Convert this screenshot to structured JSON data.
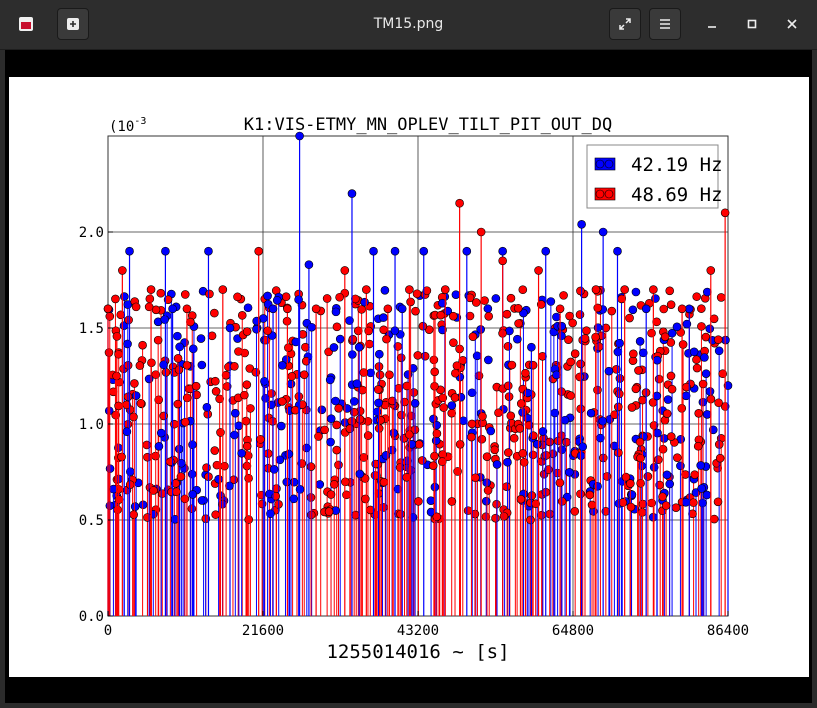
{
  "window": {
    "title": "TM15.png",
    "icons": {
      "app": "image-viewer-icon",
      "new": "new-window-icon",
      "fullscreen": "fullscreen-icon",
      "menu": "hamburger-menu-icon",
      "minimize": "minimize-icon",
      "maximize": "maximize-icon",
      "close": "close-icon"
    }
  },
  "chart_data": {
    "type": "scatter",
    "title": "K1:VIS-ETMY_MN_OPLEV_TILT_PIT_OUT_DQ",
    "xlabel": "1255014016 ~ [s]",
    "ylabel": "",
    "y_scale_label": "(10",
    "y_scale_exp": "-3",
    "xlim": [
      0,
      86400
    ],
    "ylim": [
      0,
      0.0025
    ],
    "x_ticks": [
      0,
      21600,
      43200,
      64800,
      86400
    ],
    "x_tick_labels": [
      "0",
      "21600",
      "43200",
      "64800",
      "86400"
    ],
    "y_ticks": [
      0,
      0.0005,
      0.001,
      0.0015,
      0.002
    ],
    "y_tick_labels": [
      "0.0",
      "0.5",
      "1.0",
      "1.5",
      "2.0"
    ],
    "grid": true,
    "legend_position": "top-right",
    "marker": "stem",
    "series": [
      {
        "name": "42.19 Hz",
        "color": "#0000ff",
        "x": [
          0,
          3000,
          8000,
          9000,
          14000,
          17000,
          23000,
          26700,
          28000,
          34000,
          35000,
          37000,
          40000,
          41000,
          44000,
          50000,
          55000,
          59000,
          61000,
          66000,
          69000,
          71000,
          75000,
          81000,
          86400
        ],
        "values": [
          0.0016,
          0.0019,
          0.0019,
          0.0016,
          0.0019,
          0.0015,
          0.0016,
          0.0025,
          0.00183,
          0.0022,
          0.0014,
          0.0019,
          0.0019,
          0.0016,
          0.0019,
          0.0019,
          0.0019,
          0.0014,
          0.0019,
          0.00204,
          0.002,
          0.0019,
          0.0016,
          0.0016,
          0.0012
        ]
      },
      {
        "name": "48.69 Hz",
        "color": "#ff0000",
        "x": [
          0,
          2000,
          6000,
          11000,
          16000,
          21000,
          25000,
          29000,
          33000,
          36000,
          39000,
          42000,
          47000,
          49000,
          52000,
          55000,
          60000,
          63000,
          68000,
          72000,
          76000,
          80000,
          84000,
          86000
        ],
        "values": [
          0.0016,
          0.0018,
          0.0017,
          0.0016,
          0.0017,
          0.0019,
          0.0016,
          0.0016,
          0.0018,
          0.0017,
          0.0016,
          0.0017,
          0.0017,
          0.00215,
          0.002,
          0.00185,
          0.0018,
          0.0016,
          0.0017,
          0.0017,
          0.0017,
          0.0016,
          0.0018,
          0.0021
        ]
      }
    ]
  }
}
